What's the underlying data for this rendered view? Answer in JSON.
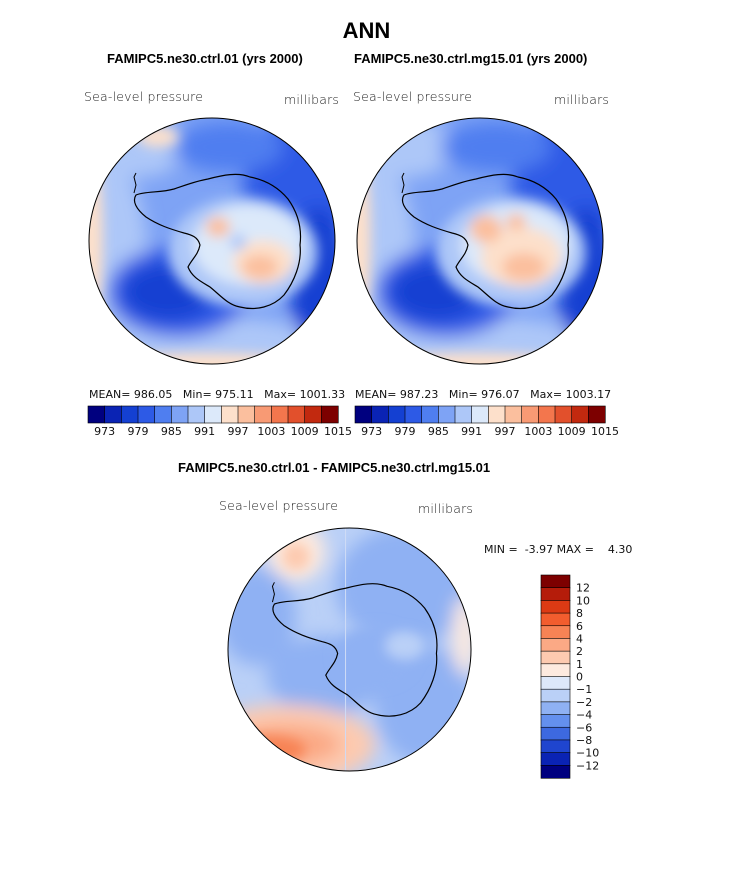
{
  "title": "ANN",
  "panels": [
    {
      "subtitle": "FAMIPC5.ne30.ctrl.01 (yrs 2000)",
      "variable": "Sea-level pressure",
      "units": "millibars",
      "stats": {
        "mean_label": "MEAN=",
        "mean": "986.05",
        "min_label": "Min=",
        "min": "975.11",
        "max_label": "Max=",
        "max": "1001.33"
      }
    },
    {
      "subtitle": "FAMIPC5.ne30.ctrl.mg15.01 (yrs 2000)",
      "variable": "Sea-level pressure",
      "units": "millibars",
      "stats": {
        "mean_label": "MEAN=",
        "mean": "987.23",
        "min_label": "Min=",
        "min": "976.07",
        "max_label": "Max=",
        "max": "1003.17"
      }
    }
  ],
  "abs_colorbar": {
    "colors": [
      "#00007f",
      "#0a23b4",
      "#1440d2",
      "#2d5ae6",
      "#4f7ef0",
      "#7ea3f5",
      "#adc7f8",
      "#dce9fa",
      "#fde0cb",
      "#fbbf9e",
      "#f89a74",
      "#f3764d",
      "#e2502c",
      "#c2290f",
      "#7d0000"
    ],
    "tick_labels": [
      "973",
      "979",
      "985",
      "991",
      "997",
      "1003",
      "1009",
      "1015"
    ]
  },
  "difference": {
    "subtitle": "FAMIPC5.ne30.ctrl.01 - FAMIPC5.ne30.ctrl.mg15.01",
    "variable": "Sea-level pressure",
    "units": "millibars",
    "min_label": "MIN =",
    "min": "-3.97",
    "max_label": "MAX =",
    "max": "4.30"
  },
  "diff_colorbar": {
    "levels": [
      "12",
      "10",
      "8",
      "6",
      "4",
      "2",
      "1",
      "0",
      "−1",
      "−2",
      "−4",
      "−6",
      "−8",
      "−10",
      "−12"
    ],
    "colors": [
      "#7d0000",
      "#b51c0a",
      "#dc3a14",
      "#f25d2e",
      "#f78355",
      "#fba985",
      "#fdcab0",
      "#fdeadf",
      "#dde8fa",
      "#bad0f7",
      "#8fb1f3",
      "#6490ee",
      "#3d69e0",
      "#1f45cf",
      "#0a23b4",
      "#00007f"
    ]
  },
  "chart_data": [
    {
      "type": "heatmap",
      "title": "FAMIPC5.ne30.ctrl.01 (yrs 2000)",
      "variable": "Sea-level pressure",
      "units": "millibars",
      "projection": "south polar stereographic",
      "mean": 986.05,
      "min": 975.11,
      "max": 1001.33,
      "levels": [
        973,
        976,
        979,
        982,
        985,
        988,
        991,
        994,
        997,
        1000,
        1003,
        1006,
        1009,
        1012,
        1015
      ]
    },
    {
      "type": "heatmap",
      "title": "FAMIPC5.ne30.ctrl.mg15.01 (yrs 2000)",
      "variable": "Sea-level pressure",
      "units": "millibars",
      "projection": "south polar stereographic",
      "mean": 987.23,
      "min": 976.07,
      "max": 1003.17,
      "levels": [
        973,
        976,
        979,
        982,
        985,
        988,
        991,
        994,
        997,
        1000,
        1003,
        1006,
        1009,
        1012,
        1015
      ]
    },
    {
      "type": "heatmap",
      "title": "FAMIPC5.ne30.ctrl.01 - FAMIPC5.ne30.ctrl.mg15.01",
      "variable": "Sea-level pressure",
      "units": "millibars",
      "projection": "south polar stereographic",
      "min": -3.97,
      "max": 4.3,
      "levels": [
        -12,
        -10,
        -8,
        -6,
        -4,
        -2,
        -1,
        0,
        1,
        2,
        4,
        6,
        8,
        10,
        12
      ]
    }
  ]
}
